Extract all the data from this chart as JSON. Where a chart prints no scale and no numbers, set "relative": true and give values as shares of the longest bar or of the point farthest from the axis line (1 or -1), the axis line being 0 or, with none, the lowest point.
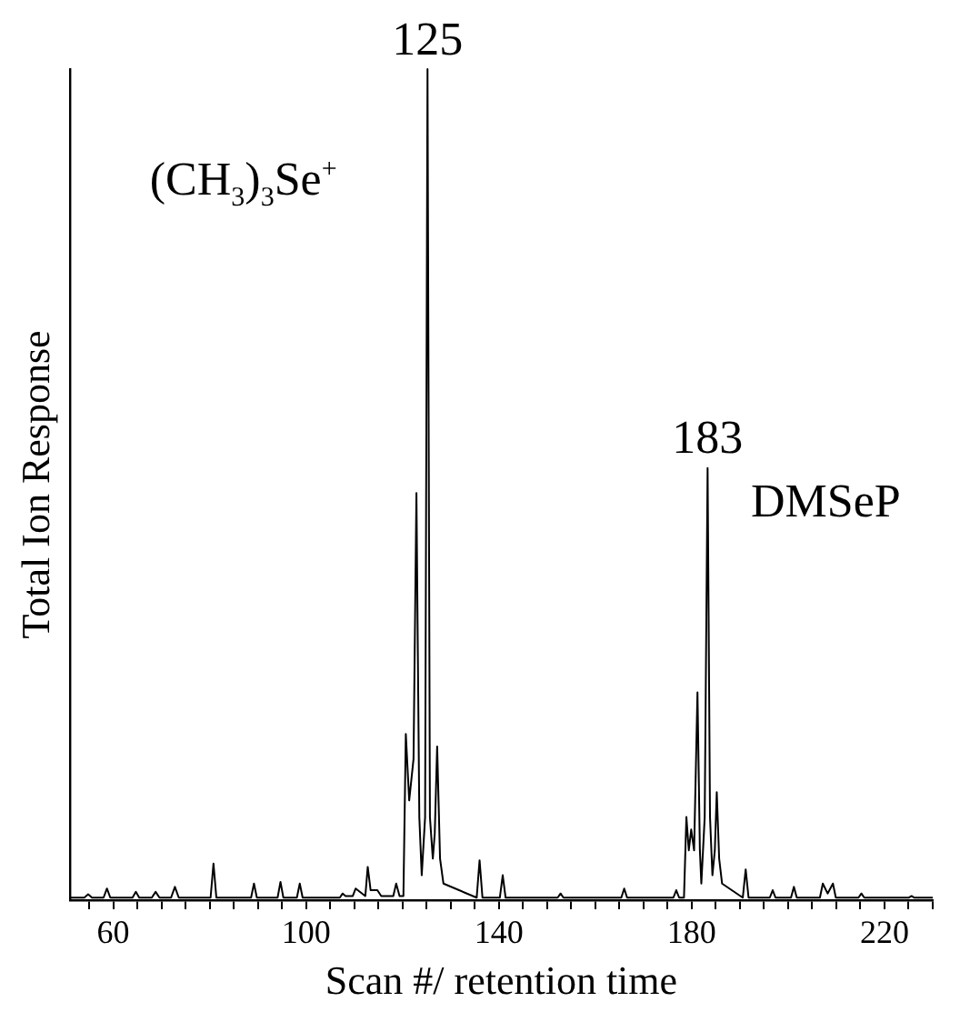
{
  "chart_data": {
    "type": "line",
    "relative": true,
    "xlabel": "Scan #/ retention time",
    "ylabel": "Total Ion Response",
    "xlim": [
      51,
      230
    ],
    "xticks": [
      {
        "value": 55,
        "label": null
      },
      60,
      {
        "value": 65,
        "label": null
      },
      {
        "value": 70,
        "label": null
      },
      {
        "value": 75,
        "label": null
      },
      {
        "value": 80,
        "label": null
      },
      {
        "value": 85,
        "label": null
      },
      {
        "value": 90,
        "label": null
      },
      {
        "value": 95,
        "label": null
      },
      100,
      {
        "value": 105,
        "label": null
      },
      {
        "value": 110,
        "label": null
      },
      {
        "value": 115,
        "label": null
      },
      {
        "value": 120,
        "label": null
      },
      {
        "value": 125,
        "label": null
      },
      {
        "value": 130,
        "label": null
      },
      {
        "value": 135,
        "label": null
      },
      140,
      {
        "value": 145,
        "label": null
      },
      {
        "value": 150,
        "label": null
      },
      {
        "value": 155,
        "label": null
      },
      {
        "value": 160,
        "label": null
      },
      {
        "value": 165,
        "label": null
      },
      {
        "value": 170,
        "label": null
      },
      {
        "value": 175,
        "label": null
      },
      180,
      {
        "value": 185,
        "label": null
      },
      {
        "value": 190,
        "label": null
      },
      {
        "value": 195,
        "label": null
      },
      {
        "value": 200,
        "label": null
      },
      {
        "value": 205,
        "label": null
      },
      {
        "value": 210,
        "label": null
      },
      {
        "value": 215,
        "label": null
      },
      220,
      {
        "value": 225,
        "label": null
      },
      {
        "value": 230,
        "label": null
      }
    ],
    "marker": "none",
    "grid": false,
    "legend": false,
    "series": [
      {
        "color": "#000000",
        "x": [
          51,
          54,
          54.8,
          55.6,
          58,
          58.7,
          59.4,
          64,
          64.7,
          65.4,
          68,
          68.8,
          69.6,
          72,
          72.8,
          73.6,
          80.2,
          80.8,
          81.4,
          88.6,
          89.2,
          89.8,
          94.1,
          94.7,
          95.3,
          98.1,
          98.7,
          99.3,
          107,
          107.6,
          108.2,
          109.7,
          110.3,
          112.3,
          112.8,
          113.4,
          114.8,
          115.6,
          118.1,
          118.7,
          119.4,
          120.2,
          120.7,
          121.4,
          122.3,
          122.9,
          123.5,
          124,
          124.7,
          125.2,
          125.7,
          126.3,
          126.7,
          127.2,
          127.8,
          128.5,
          135.4,
          136,
          136.6,
          140.2,
          140.8,
          141.4,
          152.2,
          152.8,
          153.4,
          165.4,
          166,
          166.6,
          176.2,
          176.8,
          177.4,
          178.4,
          178.9,
          179.4,
          179.9,
          180.5,
          181.2,
          181.7,
          182,
          182.7,
          183.3,
          183.8,
          184.3,
          184.8,
          185.2,
          185.7,
          186.3,
          190.6,
          191.2,
          191.8,
          196.2,
          196.8,
          197.4,
          200.6,
          201.2,
          201.8,
          206.6,
          207.2,
          208.2,
          209.3,
          209.9,
          214.6,
          215.2,
          215.8,
          225,
          225.6,
          226.2,
          230
        ],
        "values": [
          0.003,
          0.003,
          0.007,
          0.003,
          0.003,
          0.014,
          0.003,
          0.003,
          0.01,
          0.003,
          0.003,
          0.01,
          0.003,
          0.003,
          0.016,
          0.003,
          0.003,
          0.044,
          0.003,
          0.003,
          0.02,
          0.003,
          0.003,
          0.022,
          0.003,
          0.003,
          0.02,
          0.003,
          0.003,
          0.008,
          0.005,
          0.005,
          0.014,
          0.005,
          0.04,
          0.012,
          0.012,
          0.005,
          0.005,
          0.02,
          0.005,
          0.005,
          0.2,
          0.12,
          0.17,
          0.49,
          0.1,
          0.03,
          0.1,
          1,
          0.1,
          0.05,
          0.08,
          0.185,
          0.05,
          0.02,
          0.003,
          0.048,
          0.003,
          0.003,
          0.03,
          0.003,
          0.003,
          0.008,
          0.003,
          0.003,
          0.014,
          0.003,
          0.003,
          0.012,
          0.003,
          0.003,
          0.1,
          0.06,
          0.085,
          0.06,
          0.25,
          0.06,
          0.02,
          0.1,
          0.52,
          0.1,
          0.03,
          0.06,
          0.13,
          0.05,
          0.02,
          0.003,
          0.037,
          0.003,
          0.003,
          0.012,
          0.003,
          0.003,
          0.016,
          0.003,
          0.003,
          0.02,
          0.008,
          0.02,
          0.003,
          0.003,
          0.008,
          0.003,
          0.003,
          0.005,
          0.003,
          0.003
        ]
      }
    ],
    "annotations": [
      {
        "text": "125",
        "x": 125.2,
        "y": 1
      },
      {
        "text": "183",
        "x": 183.3,
        "y": 0.52
      },
      "(CH$_{3}$)$_{3}$Se$^{+}$",
      "DMSeP"
    ]
  }
}
